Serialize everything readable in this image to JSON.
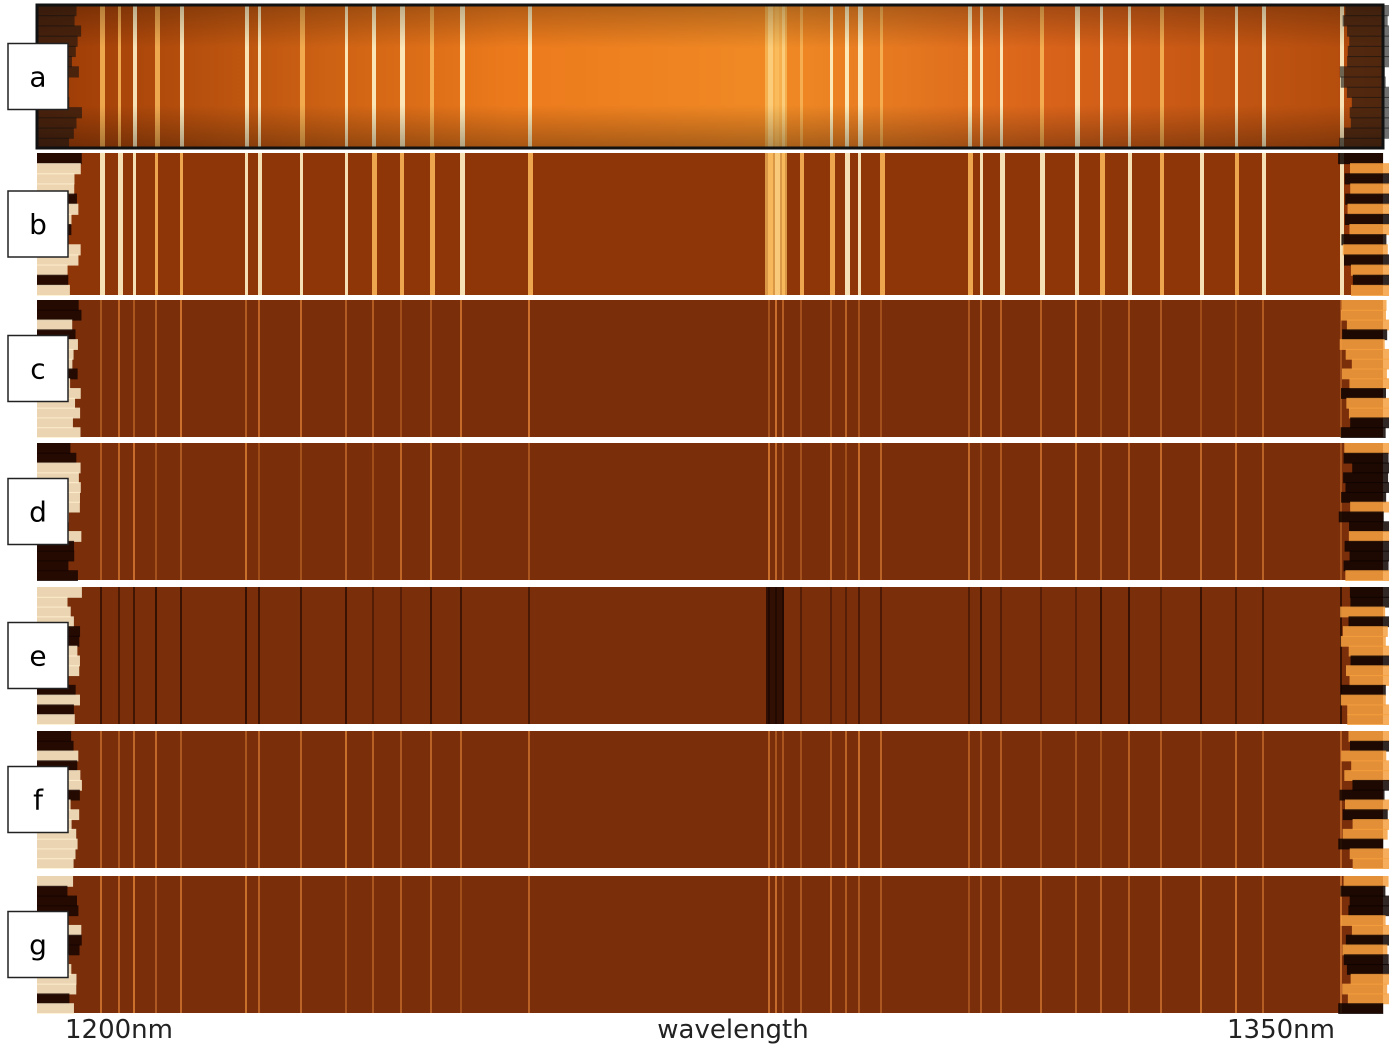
{
  "panels": [
    {
      "label": "a"
    },
    {
      "label": "b"
    },
    {
      "label": "c"
    },
    {
      "label": "d"
    },
    {
      "label": "e"
    },
    {
      "label": "f"
    },
    {
      "label": "g"
    }
  ],
  "axis": {
    "left": "1200nm",
    "center": "wavelength",
    "right": "1350nm"
  }
}
